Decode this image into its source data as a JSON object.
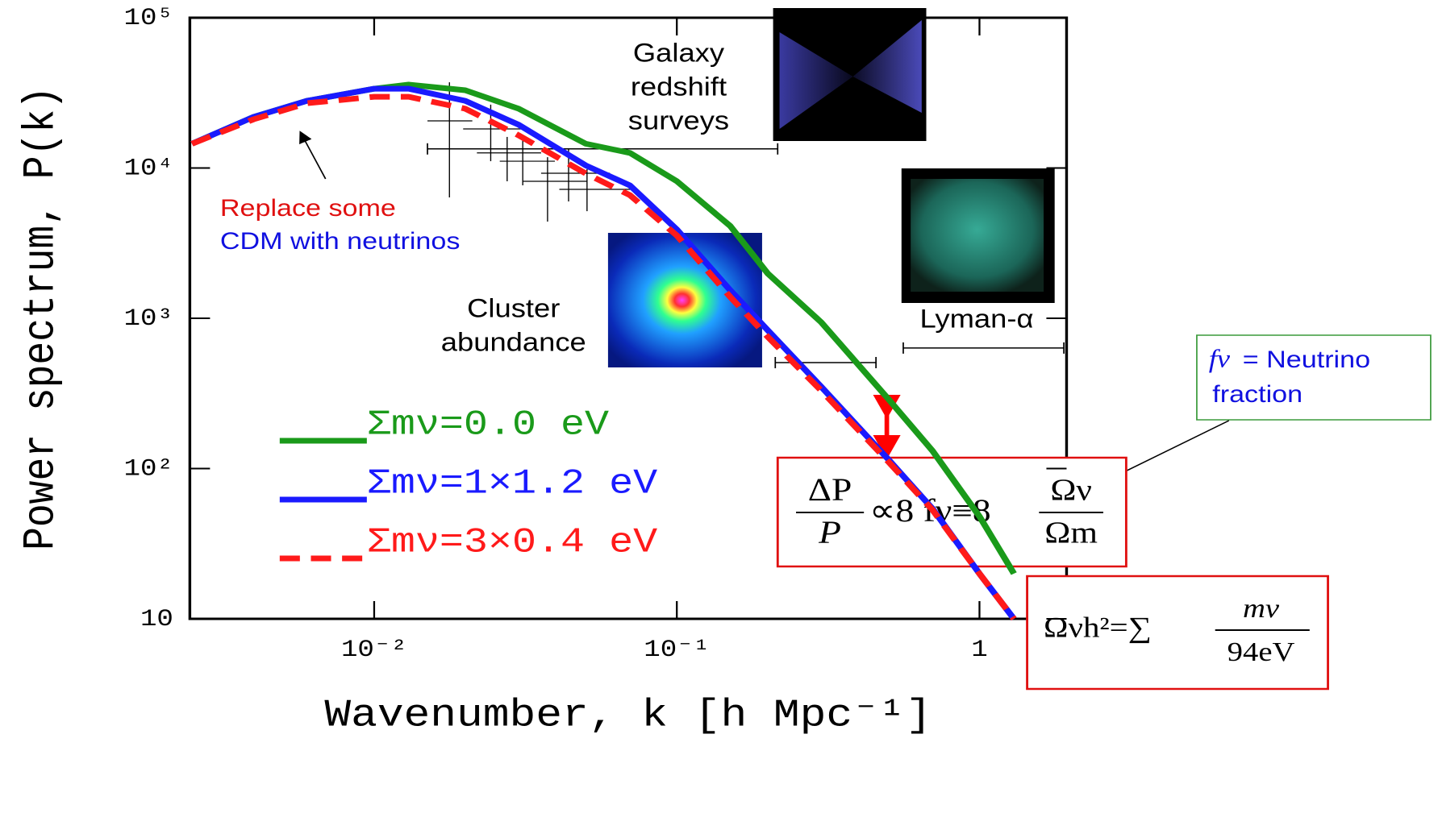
{
  "chart_data": {
    "type": "line",
    "x_label": "Wavenumber, k [h Mpc⁻¹]",
    "y_label": "Power spectrum, P(k)",
    "log_x": true,
    "log_y": true,
    "xlim": [
      0.00246,
      1.94
    ],
    "ylim": [
      10,
      100000
    ],
    "xticks": [
      {
        "value": 0.01,
        "label": "10⁻²"
      },
      {
        "value": 0.1,
        "label": "10⁻¹"
      },
      1
    ],
    "yticks": [
      10,
      {
        "value": 100,
        "label": "10²"
      },
      {
        "value": 1000,
        "label": "10³"
      },
      {
        "value": 10000,
        "label": "10⁴"
      },
      {
        "value": 100000,
        "label": "10⁵"
      }
    ],
    "x": [
      0.0025,
      0.004,
      0.006,
      0.01,
      0.013,
      0.02,
      0.03,
      0.05,
      0.07,
      0.1,
      0.15,
      0.2,
      0.3,
      0.5,
      0.7,
      1.0,
      1.3
    ],
    "series": [
      {
        "name": "Σmν=0.0 eV",
        "color": "#1a9a1a",
        "dash": false,
        "values": [
          14500,
          21900,
          28000,
          33700,
          35900,
          32900,
          24800,
          14500,
          12600,
          8170,
          4120,
          1980,
          940,
          290,
          131,
          48,
          20
        ]
      },
      {
        "name": "Σmν=1×1.2 eV",
        "color": "#1a1aff",
        "dash": false,
        "values": [
          14500,
          21900,
          28000,
          33700,
          33700,
          28000,
          19400,
          10400,
          7660,
          3900,
          1540,
          830,
          350,
          115,
          54,
          20,
          10
        ]
      },
      {
        "name": "Σmν=3×0.4 eV",
        "color": "#ff1a1a",
        "dash": true,
        "values": [
          14500,
          21100,
          27000,
          29800,
          29800,
          24800,
          16500,
          9200,
          6600,
          3560,
          1390,
          750,
          330,
          111,
          53,
          20,
          10
        ]
      }
    ],
    "points": [
      {
        "x": 0.01773,
        "y": 20600,
        "xlo": 0.015,
        "xhi": 0.0211,
        "ylo": 6370,
        "yhi": 37200
      },
      {
        "x": 0.02427,
        "y": 18200,
        "xlo": 0.01968,
        "xhi": 0.03097,
        "ylo": 11100,
        "yhi": 26400
      },
      {
        "x": 0.0275,
        "y": 12600,
        "xlo": 0.02185,
        "xhi": 0.03561,
        "ylo": 8160,
        "yhi": 16100
      },
      {
        "x": 0.03097,
        "y": 11100,
        "xlo": 0.026,
        "xhi": 0.03954,
        "ylo": 7670,
        "yhi": 16100
      },
      {
        "x": 0.0374,
        "y": 8160,
        "xlo": 0.03097,
        "xhi": 0.0505,
        "ylo": 4400,
        "yhi": 11800
      },
      {
        "x": 0.04389,
        "y": 9230,
        "xlo": 0.03561,
        "xhi": 0.06009,
        "ylo": 5990,
        "yhi": 13400
      },
      {
        "x": 0.0505,
        "y": 7210,
        "xlo": 0.0409,
        "xhi": 0.0715,
        "ylo": 5160,
        "yhi": 9820
      }
    ],
    "ranges": [
      {
        "label": [
          "Galaxy",
          "redshift",
          "surveys"
        ],
        "xlo": 0.015,
        "xhi": 0.2154,
        "y": 13400
      },
      {
        "label": [
          "Cluster",
          "abundance"
        ],
        "xlo": 0.2115,
        "xhi": 0.455,
        "y": 507
      },
      {
        "label": [
          "Lyman-α"
        ],
        "xlo": 0.56,
        "xhi": 1.9,
        "y": 634
      }
    ],
    "annotation": [
      "Replace some",
      "CDM with neutrinos"
    ],
    "definition": {
      "symbol": "fν",
      "lines": [
        "= Neutrino",
        "fraction"
      ]
    },
    "formula_1": {
      "num": "ΔP",
      "den": "P",
      "middle": "∝8 fν≡8",
      "rhs_num": "Ων",
      "rhs_den": "Ωm"
    },
    "formula_2": {
      "lhs": "Ωνh²=∑",
      "num": "mν",
      "den": "94eV"
    }
  }
}
